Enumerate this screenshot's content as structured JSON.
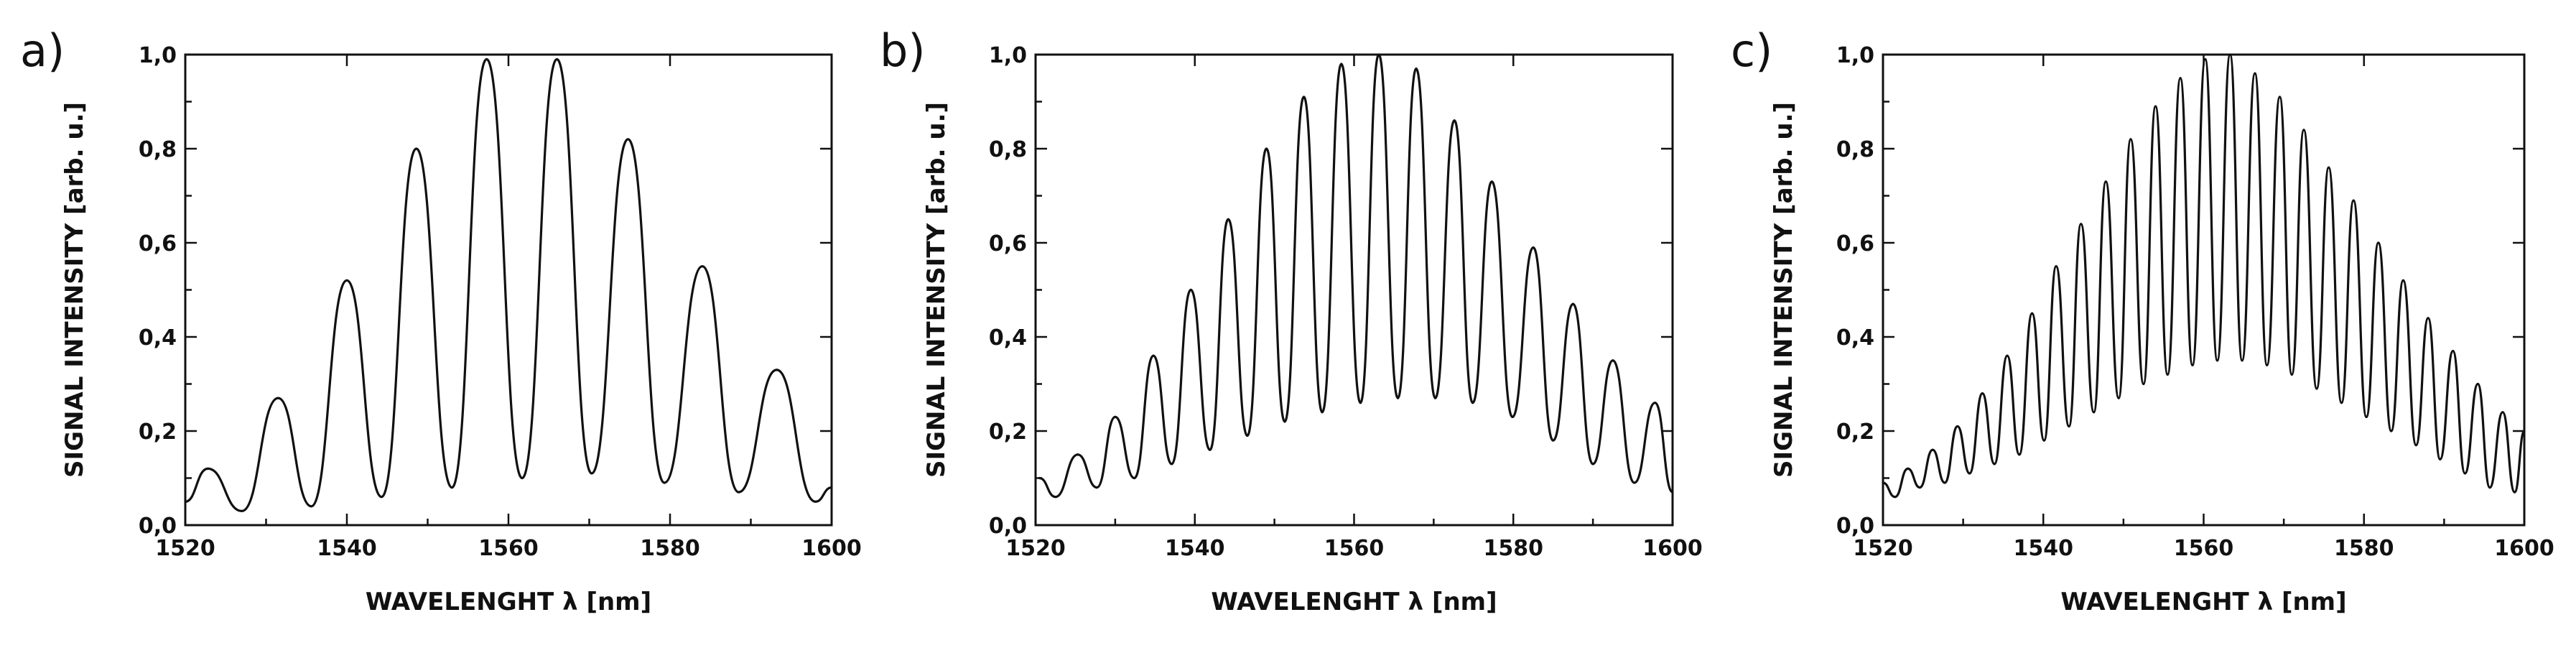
{
  "chart_data": [
    {
      "type": "line",
      "panel_label": "a)",
      "xlabel": "WAVELENGHT λ [nm]",
      "ylabel": "SIGNAL INTENSITY [arb. u.]",
      "xlim": [
        1520,
        1600
      ],
      "ylim": [
        0.0,
        1.0
      ],
      "x_ticks": [
        "1520",
        "1540",
        "1560",
        "1580",
        "1600"
      ],
      "y_ticks": [
        "0,0",
        "0,2",
        "0,4",
        "0,6",
        "0,8",
        "1,0"
      ],
      "grid": false,
      "series": [
        {
          "fringe_peaks": [
            {
              "x": 1522.8,
              "y": 0.12
            },
            {
              "x": 1531.5,
              "y": 0.27
            },
            {
              "x": 1540.0,
              "y": 0.52
            },
            {
              "x": 1548.6,
              "y": 0.8
            },
            {
              "x": 1557.3,
              "y": 0.99
            },
            {
              "x": 1566.0,
              "y": 0.99
            },
            {
              "x": 1574.8,
              "y": 0.82
            },
            {
              "x": 1584.0,
              "y": 0.55
            },
            {
              "x": 1593.2,
              "y": 0.33
            }
          ],
          "fringe_valleys": [
            {
              "x": 1520.0,
              "y": 0.05
            },
            {
              "x": 1527.0,
              "y": 0.03
            },
            {
              "x": 1535.6,
              "y": 0.04
            },
            {
              "x": 1544.3,
              "y": 0.06
            },
            {
              "x": 1553.0,
              "y": 0.08
            },
            {
              "x": 1561.7,
              "y": 0.1
            },
            {
              "x": 1570.3,
              "y": 0.11
            },
            {
              "x": 1579.3,
              "y": 0.09
            },
            {
              "x": 1588.5,
              "y": 0.07
            },
            {
              "x": 1598.0,
              "y": 0.05
            },
            {
              "x": 1600.0,
              "y": 0.08
            }
          ]
        }
      ]
    },
    {
      "type": "line",
      "panel_label": "b)",
      "xlabel": "WAVELENGHT λ [nm]",
      "ylabel": "SIGNAL INTENSITY [arb. u.]",
      "xlim": [
        1520,
        1600
      ],
      "ylim": [
        0.0,
        1.0
      ],
      "x_ticks": [
        "1520",
        "1540",
        "1560",
        "1580",
        "1600"
      ],
      "y_ticks": [
        "0,0",
        "0,2",
        "0,4",
        "0,6",
        "0,8",
        "1,0"
      ],
      "grid": false,
      "series": [
        {
          "fringe_peaks": [
            {
              "x": 1520.5,
              "y": 0.1
            },
            {
              "x": 1525.3,
              "y": 0.15
            },
            {
              "x": 1530.0,
              "y": 0.23
            },
            {
              "x": 1534.8,
              "y": 0.36
            },
            {
              "x": 1539.5,
              "y": 0.5
            },
            {
              "x": 1544.2,
              "y": 0.65
            },
            {
              "x": 1549.0,
              "y": 0.8
            },
            {
              "x": 1553.7,
              "y": 0.91
            },
            {
              "x": 1558.4,
              "y": 0.98
            },
            {
              "x": 1563.1,
              "y": 1.0
            },
            {
              "x": 1567.8,
              "y": 0.97
            },
            {
              "x": 1572.6,
              "y": 0.86
            },
            {
              "x": 1577.3,
              "y": 0.73
            },
            {
              "x": 1582.5,
              "y": 0.59
            },
            {
              "x": 1587.5,
              "y": 0.47
            },
            {
              "x": 1592.5,
              "y": 0.35
            },
            {
              "x": 1597.8,
              "y": 0.26
            }
          ],
          "fringe_valleys": [
            {
              "x": 1522.5,
              "y": 0.06
            },
            {
              "x": 1527.7,
              "y": 0.08
            },
            {
              "x": 1532.4,
              "y": 0.1
            },
            {
              "x": 1537.1,
              "y": 0.13
            },
            {
              "x": 1541.9,
              "y": 0.16
            },
            {
              "x": 1546.6,
              "y": 0.19
            },
            {
              "x": 1551.3,
              "y": 0.22
            },
            {
              "x": 1556.0,
              "y": 0.24
            },
            {
              "x": 1560.8,
              "y": 0.26
            },
            {
              "x": 1565.5,
              "y": 0.27
            },
            {
              "x": 1570.2,
              "y": 0.27
            },
            {
              "x": 1574.9,
              "y": 0.26
            },
            {
              "x": 1579.9,
              "y": 0.23
            },
            {
              "x": 1585.0,
              "y": 0.18
            },
            {
              "x": 1590.0,
              "y": 0.13
            },
            {
              "x": 1595.2,
              "y": 0.09
            },
            {
              "x": 1600.0,
              "y": 0.07
            }
          ]
        }
      ]
    },
    {
      "type": "line",
      "panel_label": "c)",
      "xlabel": "WAVELENGHT λ [nm]",
      "ylabel": "SIGNAL INTENSITY [arb. u.]",
      "xlim": [
        1520,
        1600
      ],
      "ylim": [
        0.0,
        1.0
      ],
      "x_ticks": [
        "1520",
        "1540",
        "1560",
        "1580",
        "1600"
      ],
      "y_ticks": [
        "0,0",
        "0,2",
        "0,4",
        "0,6",
        "0,8",
        "1,0"
      ],
      "grid": false,
      "series": [
        {
          "fringe_peaks": [
            {
              "x": 1520.0,
              "y": 0.09
            },
            {
              "x": 1523.1,
              "y": 0.12
            },
            {
              "x": 1526.2,
              "y": 0.16
            },
            {
              "x": 1529.3,
              "y": 0.21
            },
            {
              "x": 1532.4,
              "y": 0.28
            },
            {
              "x": 1535.5,
              "y": 0.36
            },
            {
              "x": 1538.6,
              "y": 0.45
            },
            {
              "x": 1541.6,
              "y": 0.55
            },
            {
              "x": 1544.7,
              "y": 0.64
            },
            {
              "x": 1547.8,
              "y": 0.73
            },
            {
              "x": 1550.9,
              "y": 0.82
            },
            {
              "x": 1554.0,
              "y": 0.89
            },
            {
              "x": 1557.1,
              "y": 0.95
            },
            {
              "x": 1560.2,
              "y": 0.99
            },
            {
              "x": 1563.3,
              "y": 1.0
            },
            {
              "x": 1566.4,
              "y": 0.96
            },
            {
              "x": 1569.5,
              "y": 0.91
            },
            {
              "x": 1572.5,
              "y": 0.84
            },
            {
              "x": 1575.6,
              "y": 0.76
            },
            {
              "x": 1578.7,
              "y": 0.69
            },
            {
              "x": 1581.8,
              "y": 0.6
            },
            {
              "x": 1584.9,
              "y": 0.52
            },
            {
              "x": 1588.0,
              "y": 0.44
            },
            {
              "x": 1591.1,
              "y": 0.37
            },
            {
              "x": 1594.2,
              "y": 0.3
            },
            {
              "x": 1597.3,
              "y": 0.24
            },
            {
              "x": 1600.0,
              "y": 0.2
            }
          ],
          "fringe_valleys": [
            {
              "x": 1521.5,
              "y": 0.06
            },
            {
              "x": 1524.6,
              "y": 0.08
            },
            {
              "x": 1527.7,
              "y": 0.09
            },
            {
              "x": 1530.8,
              "y": 0.11
            },
            {
              "x": 1533.9,
              "y": 0.13
            },
            {
              "x": 1537.0,
              "y": 0.15
            },
            {
              "x": 1540.1,
              "y": 0.18
            },
            {
              "x": 1543.2,
              "y": 0.21
            },
            {
              "x": 1546.3,
              "y": 0.24
            },
            {
              "x": 1549.4,
              "y": 0.27
            },
            {
              "x": 1552.5,
              "y": 0.3
            },
            {
              "x": 1555.5,
              "y": 0.32
            },
            {
              "x": 1558.6,
              "y": 0.34
            },
            {
              "x": 1561.7,
              "y": 0.35
            },
            {
              "x": 1564.8,
              "y": 0.35
            },
            {
              "x": 1567.9,
              "y": 0.34
            },
            {
              "x": 1571.0,
              "y": 0.32
            },
            {
              "x": 1574.1,
              "y": 0.29
            },
            {
              "x": 1577.2,
              "y": 0.26
            },
            {
              "x": 1580.3,
              "y": 0.23
            },
            {
              "x": 1583.4,
              "y": 0.2
            },
            {
              "x": 1586.5,
              "y": 0.17
            },
            {
              "x": 1589.5,
              "y": 0.14
            },
            {
              "x": 1592.6,
              "y": 0.11
            },
            {
              "x": 1595.7,
              "y": 0.08
            },
            {
              "x": 1598.8,
              "y": 0.07
            }
          ]
        }
      ]
    }
  ]
}
